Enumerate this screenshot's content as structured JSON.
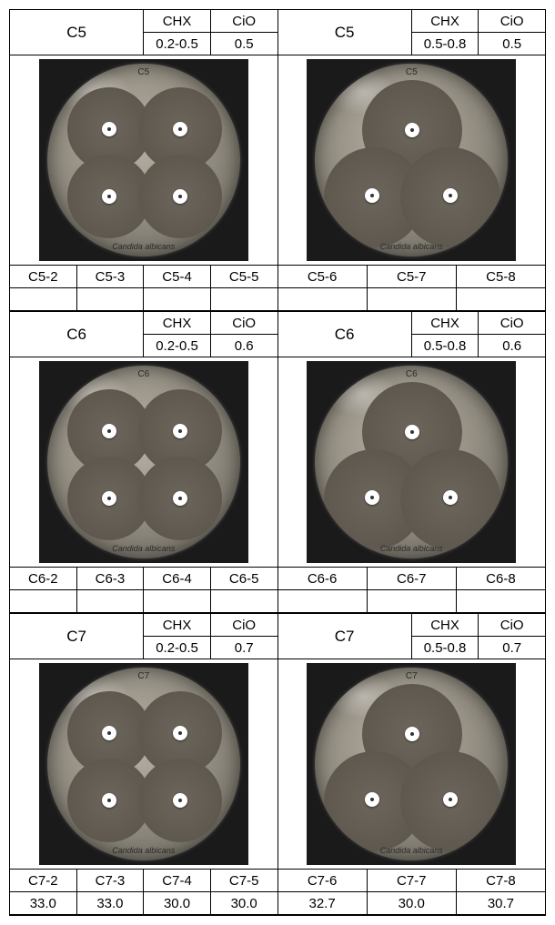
{
  "blocks": [
    {
      "left": {
        "title": "C5",
        "chx_label": "CHX",
        "cio_label": "CiO",
        "chx_val": "0.2-0.5",
        "cio_val": "0.5",
        "dish_top": "C5",
        "discs": 4,
        "footer_cols": [
          "C5-2",
          "C5-3",
          "C5-4",
          "C5-5"
        ],
        "footer_vals": [
          "",
          "",
          "",
          ""
        ]
      },
      "right": {
        "title": "C5",
        "chx_label": "CHX",
        "cio_label": "CiO",
        "chx_val": "0.5-0.8",
        "cio_val": "0.5",
        "dish_top": "C5",
        "discs": 3,
        "footer_cols": [
          "C5-6",
          "C5-7",
          "C5-8"
        ],
        "footer_vals": [
          "",
          "",
          ""
        ]
      }
    },
    {
      "left": {
        "title": "C6",
        "chx_label": "CHX",
        "cio_label": "CiO",
        "chx_val": "0.2-0.5",
        "cio_val": "0.6",
        "dish_top": "C6",
        "discs": 4,
        "footer_cols": [
          "C6-2",
          "C6-3",
          "C6-4",
          "C6-5"
        ],
        "footer_vals": [
          "",
          "",
          "",
          ""
        ]
      },
      "right": {
        "title": "C6",
        "chx_label": "CHX",
        "cio_label": "CiO",
        "chx_val": "0.5-0.8",
        "cio_val": "0.6",
        "dish_top": "C6",
        "discs": 3,
        "footer_cols": [
          "C6-6",
          "C6-7",
          "C6-8"
        ],
        "footer_vals": [
          "",
          "",
          ""
        ]
      }
    },
    {
      "left": {
        "title": "C7",
        "chx_label": "CHX",
        "cio_label": "CiO",
        "chx_val": "0.2-0.5",
        "cio_val": "0.7",
        "dish_top": "C7",
        "discs": 4,
        "footer_cols": [
          "C7-2",
          "C7-3",
          "C7-4",
          "C7-5"
        ],
        "footer_vals": [
          "33.0",
          "33.0",
          "30.0",
          "30.0"
        ]
      },
      "right": {
        "title": "C7",
        "chx_label": "CHX",
        "cio_label": "CiO",
        "chx_val": "0.5-0.8",
        "cio_val": "0.7",
        "dish_top": "C7",
        "discs": 3,
        "footer_cols": [
          "C7-6",
          "C7-7",
          "C7-8"
        ],
        "footer_vals": [
          "32.7",
          "30.0",
          "30.7"
        ]
      }
    }
  ],
  "dish_label": "Candida albicans"
}
